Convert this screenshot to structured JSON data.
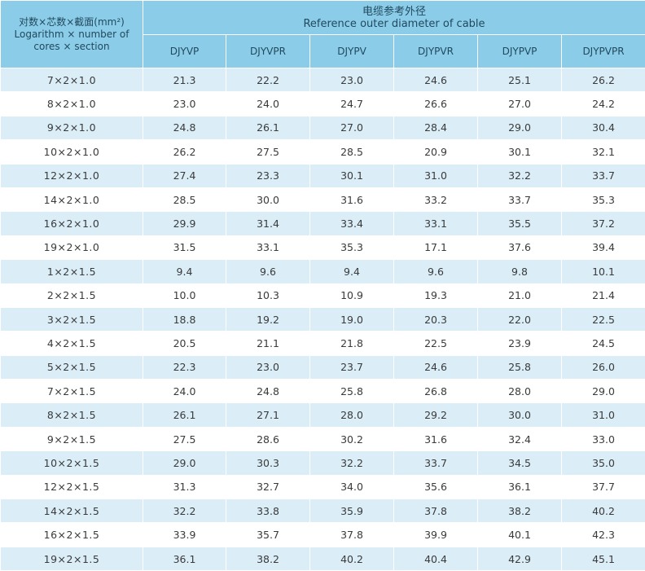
{
  "header": {
    "corner_line1": "对数×芯数×截面(mm²)",
    "corner_line2": "Logarithm × number of",
    "corner_line3": "cores × section",
    "group_title_cn": "电缆参考外径",
    "group_title_en": "Reference outer diameter of cable",
    "columns": [
      "DJYVP",
      "DJYVPR",
      "DJYPV",
      "DJYPVR",
      "DJYPVP",
      "DJYPVPR"
    ]
  },
  "rows": [
    {
      "spec": "7×2×1.0",
      "values": [
        "21.3",
        "22.2",
        "23.0",
        "24.6",
        "25.1",
        "26.2"
      ]
    },
    {
      "spec": "8×2×1.0",
      "values": [
        "23.0",
        "24.0",
        "24.7",
        "26.6",
        "27.0",
        "24.2"
      ]
    },
    {
      "spec": "9×2×1.0",
      "values": [
        "24.8",
        "26.1",
        "27.0",
        "28.4",
        "29.0",
        "30.4"
      ]
    },
    {
      "spec": "10×2×1.0",
      "values": [
        "26.2",
        "27.5",
        "28.5",
        "20.9",
        "30.1",
        "32.1"
      ]
    },
    {
      "spec": "12×2×1.0",
      "values": [
        "27.4",
        "23.3",
        "30.1",
        "31.0",
        "32.2",
        "33.7"
      ]
    },
    {
      "spec": "14×2×1.0",
      "values": [
        "28.5",
        "30.0",
        "31.6",
        "33.2",
        "33.7",
        "35.3"
      ]
    },
    {
      "spec": "16×2×1.0",
      "values": [
        "29.9",
        "31.4",
        "33.4",
        "33.1",
        "35.5",
        "37.2"
      ]
    },
    {
      "spec": "19×2×1.0",
      "values": [
        "31.5",
        "33.1",
        "35.3",
        "17.1",
        "37.6",
        "39.4"
      ]
    },
    {
      "spec": "1×2×1.5",
      "values": [
        "9.4",
        "9.6",
        "9.4",
        "9.6",
        "9.8",
        "10.1"
      ]
    },
    {
      "spec": "2×2×1.5",
      "values": [
        "10.0",
        "10.3",
        "10.9",
        "19.3",
        "21.0",
        "21.4"
      ]
    },
    {
      "spec": "3×2×1.5",
      "values": [
        "18.8",
        "19.2",
        "19.0",
        "20.3",
        "22.0",
        "22.5"
      ]
    },
    {
      "spec": "4×2×1.5",
      "values": [
        "20.5",
        "21.1",
        "21.8",
        "22.5",
        "23.9",
        "24.5"
      ]
    },
    {
      "spec": "5×2×1.5",
      "values": [
        "22.3",
        "23.0",
        "23.7",
        "24.6",
        "25.8",
        "26.0"
      ]
    },
    {
      "spec": "7×2×1.5",
      "values": [
        "24.0",
        "24.8",
        "25.8",
        "26.8",
        "28.0",
        "29.0"
      ]
    },
    {
      "spec": "8×2×1.5",
      "values": [
        "26.1",
        "27.1",
        "28.0",
        "29.2",
        "30.0",
        "31.0"
      ]
    },
    {
      "spec": "9×2×1.5",
      "values": [
        "27.5",
        "28.6",
        "30.2",
        "31.6",
        "32.4",
        "33.0"
      ]
    },
    {
      "spec": "10×2×1.5",
      "values": [
        "29.0",
        "30.3",
        "32.2",
        "33.7",
        "34.5",
        "35.0"
      ]
    },
    {
      "spec": "12×2×1.5",
      "values": [
        "31.3",
        "32.7",
        "34.0",
        "35.6",
        "36.1",
        "37.7"
      ]
    },
    {
      "spec": "14×2×1.5",
      "values": [
        "32.2",
        "33.8",
        "35.9",
        "37.8",
        "38.2",
        "40.2"
      ]
    },
    {
      "spec": "16×2×1.5",
      "values": [
        "33.9",
        "35.7",
        "37.8",
        "39.9",
        "40.1",
        "42.3"
      ]
    },
    {
      "spec": "19×2×1.5",
      "values": [
        "36.1",
        "38.2",
        "40.2",
        "40.4",
        "42.9",
        "45.1"
      ]
    }
  ],
  "colors": {
    "header_bg": "#8bcde8",
    "header_text": "#21495e",
    "stripe_bg": "#dbeef8",
    "plain_bg": "#ffffff",
    "grid_line": "#ffffff"
  }
}
